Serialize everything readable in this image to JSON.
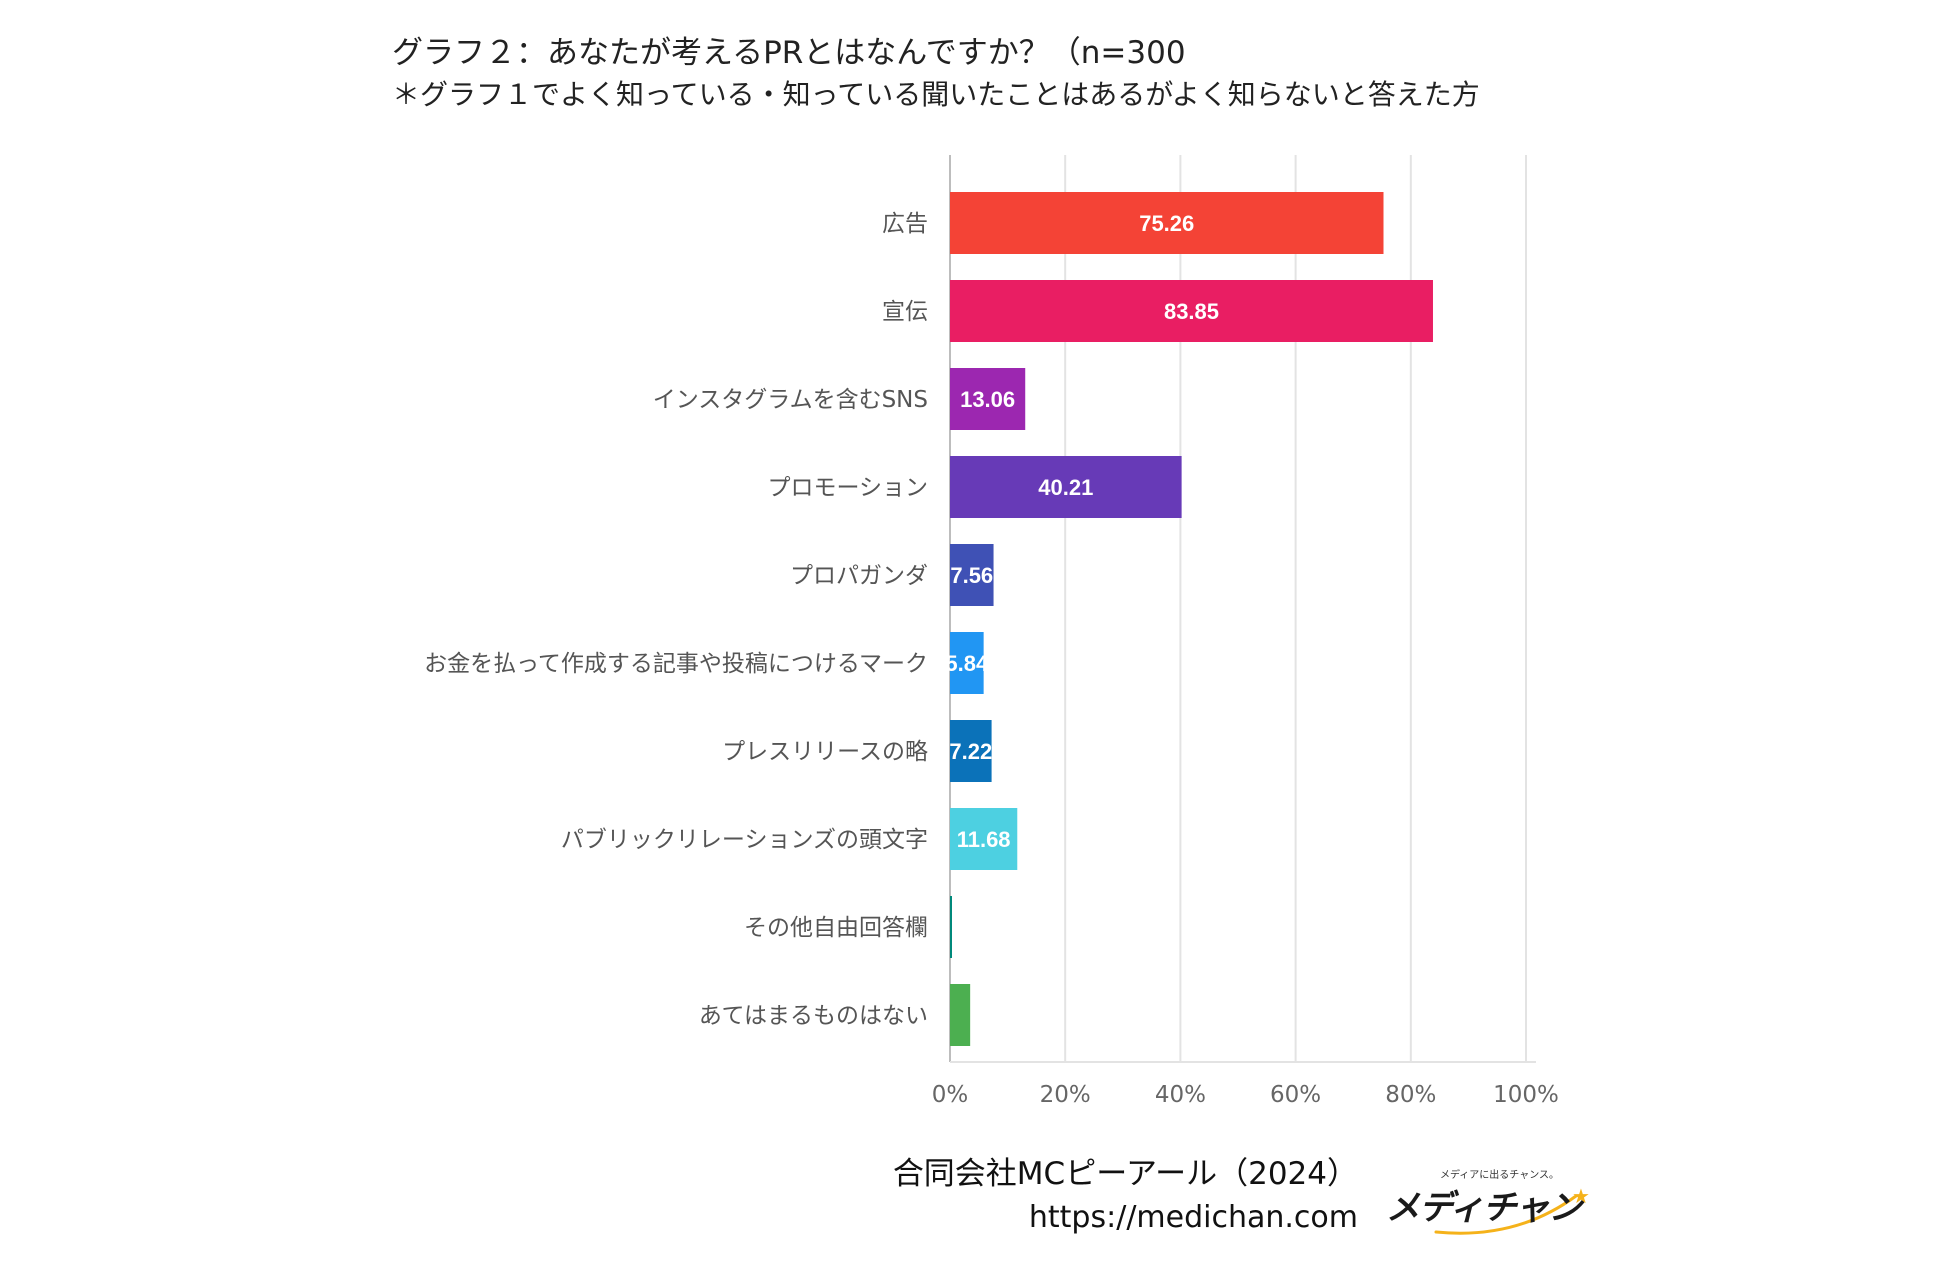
{
  "title": {
    "line1": "グラフ２：あなたが考えるPRとはなんですか？（n=300",
    "line2": "＊グラフ１でよく知っている・知っている聞いたことはあるがよく知らないと答えた方"
  },
  "chart_data": {
    "type": "bar",
    "orientation": "horizontal",
    "categories": [
      "広告",
      "宣伝",
      "インスタグラムを含むSNS",
      "プロモーション",
      "プロパガンダ",
      "お金を払って作成する記事や投稿につけるマーク",
      "プレスリリースの略",
      "パブリックリレーションズの頭文字",
      "その他自由回答欄",
      "あてはまるものはない"
    ],
    "values": [
      75.26,
      83.85,
      13.06,
      40.21,
      7.56,
      5.84,
      7.22,
      11.68,
      0.3,
      3.5
    ],
    "labels": [
      "75.26",
      "83.85",
      "13.06",
      "40.21",
      "7.56",
      "5.84",
      "7.22",
      "11.68",
      "",
      ""
    ],
    "colors": [
      "#f44336",
      "#e91e63",
      "#9c27b0",
      "#673ab7",
      "#3f51b5",
      "#2196f3",
      "#0b72b9",
      "#4dd0e1",
      "#00897b",
      "#4caf50"
    ],
    "xlim": [
      0,
      100
    ],
    "xticks": [
      "0%",
      "20%",
      "40%",
      "60%",
      "80%",
      "100%"
    ],
    "grid": true,
    "legend": "none"
  },
  "credit": {
    "company": "合同会社MCピーアール（2024）",
    "url": "https://medichan.com"
  },
  "logo": {
    "tagline": "メディアに出るチャンス。",
    "wordmark": "メディチャン"
  }
}
